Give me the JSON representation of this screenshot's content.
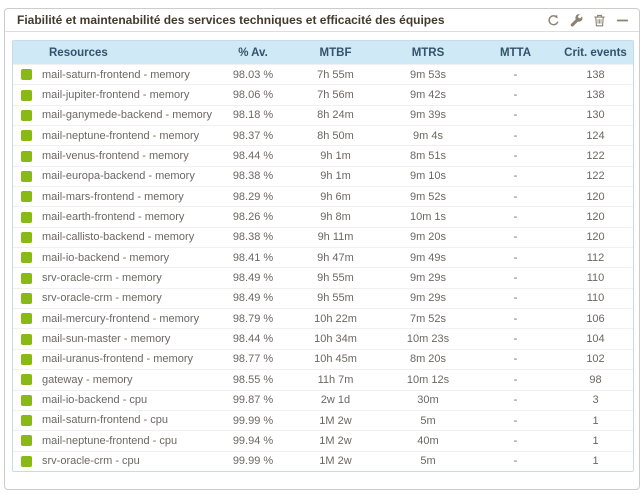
{
  "widget": {
    "title": "Fiabilité et maintenabilité des services techniques et efficacité des équipes",
    "toolbar": [
      {
        "name": "refresh"
      },
      {
        "name": "configure"
      },
      {
        "name": "delete"
      },
      {
        "name": "collapse"
      }
    ]
  },
  "table": {
    "columns": [
      "Resources",
      "% Av.",
      "MTBF",
      "MTRS",
      "MTTA",
      "Crit. events"
    ],
    "rows": [
      {
        "status": "ok",
        "resource": "mail-saturn-frontend - memory",
        "availability": "98.03 %",
        "mtbf": "7h 55m",
        "mtrs": "9m 53s",
        "mtta": "-",
        "crit_events": "138"
      },
      {
        "status": "ok",
        "resource": "mail-jupiter-frontend - memory",
        "availability": "98.06 %",
        "mtbf": "7h 56m",
        "mtrs": "9m 42s",
        "mtta": "-",
        "crit_events": "138"
      },
      {
        "status": "ok",
        "resource": "mail-ganymede-backend - memory",
        "availability": "98.18 %",
        "mtbf": "8h 24m",
        "mtrs": "9m 39s",
        "mtta": "-",
        "crit_events": "130"
      },
      {
        "status": "ok",
        "resource": "mail-neptune-frontend - memory",
        "availability": "98.37 %",
        "mtbf": "8h 50m",
        "mtrs": "9m 4s",
        "mtta": "-",
        "crit_events": "124"
      },
      {
        "status": "ok",
        "resource": "mail-venus-frontend - memory",
        "availability": "98.44 %",
        "mtbf": "9h 1m",
        "mtrs": "8m 51s",
        "mtta": "-",
        "crit_events": "122"
      },
      {
        "status": "ok",
        "resource": "mail-europa-backend - memory",
        "availability": "98.38 %",
        "mtbf": "9h 1m",
        "mtrs": "9m 10s",
        "mtta": "-",
        "crit_events": "122"
      },
      {
        "status": "ok",
        "resource": "mail-mars-frontend - memory",
        "availability": "98.29 %",
        "mtbf": "9h 6m",
        "mtrs": "9m 52s",
        "mtta": "-",
        "crit_events": "120"
      },
      {
        "status": "ok",
        "resource": "mail-earth-frontend - memory",
        "availability": "98.26 %",
        "mtbf": "9h 8m",
        "mtrs": "10m 1s",
        "mtta": "-",
        "crit_events": "120"
      },
      {
        "status": "ok",
        "resource": "mail-callisto-backend - memory",
        "availability": "98.38 %",
        "mtbf": "9h 11m",
        "mtrs": "9m 20s",
        "mtta": "-",
        "crit_events": "120"
      },
      {
        "status": "ok",
        "resource": "mail-io-backend - memory",
        "availability": "98.41 %",
        "mtbf": "9h 47m",
        "mtrs": "9m 49s",
        "mtta": "-",
        "crit_events": "112"
      },
      {
        "status": "ok",
        "resource": "srv-oracle-crm - memory",
        "availability": "98.49 %",
        "mtbf": "9h 55m",
        "mtrs": "9m 29s",
        "mtta": "-",
        "crit_events": "110"
      },
      {
        "status": "ok",
        "resource": "srv-oracle-crm - memory",
        "availability": "98.49 %",
        "mtbf": "9h 55m",
        "mtrs": "9m 29s",
        "mtta": "-",
        "crit_events": "110"
      },
      {
        "status": "ok",
        "resource": "mail-mercury-frontend - memory",
        "availability": "98.79 %",
        "mtbf": "10h 22m",
        "mtrs": "7m 52s",
        "mtta": "-",
        "crit_events": "106"
      },
      {
        "status": "ok",
        "resource": "mail-sun-master - memory",
        "availability": "98.44 %",
        "mtbf": "10h 34m",
        "mtrs": "10m 23s",
        "mtta": "-",
        "crit_events": "104"
      },
      {
        "status": "ok",
        "resource": "mail-uranus-frontend - memory",
        "availability": "98.77 %",
        "mtbf": "10h 45m",
        "mtrs": "8m 20s",
        "mtta": "-",
        "crit_events": "102"
      },
      {
        "status": "ok",
        "resource": "gateway - memory",
        "availability": "98.55 %",
        "mtbf": "11h 7m",
        "mtrs": "10m 12s",
        "mtta": "-",
        "crit_events": "98"
      },
      {
        "status": "ok",
        "resource": "mail-io-backend - cpu",
        "availability": "99.87 %",
        "mtbf": "2w 1d",
        "mtrs": "30m",
        "mtta": "-",
        "crit_events": "3"
      },
      {
        "status": "ok",
        "resource": "mail-saturn-frontend - cpu",
        "availability": "99.99 %",
        "mtbf": "1M 2w",
        "mtrs": "5m",
        "mtta": "-",
        "crit_events": "1"
      },
      {
        "status": "ok",
        "resource": "mail-neptune-frontend - cpu",
        "availability": "99.94 %",
        "mtbf": "1M 2w",
        "mtrs": "40m",
        "mtta": "-",
        "crit_events": "1"
      },
      {
        "status": "ok",
        "resource": "srv-oracle-crm - cpu",
        "availability": "99.99 %",
        "mtbf": "1M 2w",
        "mtrs": "5m",
        "mtta": "-",
        "crit_events": "1"
      }
    ]
  },
  "colors": {
    "status_ok": "#88b917",
    "header_bg": "#cfe9f6",
    "header_text": "#33536b",
    "row_text": "#6b6860",
    "title_text": "#433a2c",
    "icon_color": "#8b8272",
    "widget_border": "#cccccc",
    "table_border": "#c5dce8"
  }
}
